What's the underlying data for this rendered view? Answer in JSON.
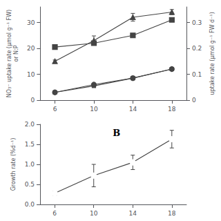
{
  "chart_data": [
    {
      "type": "line",
      "x": [
        6,
        10,
        14,
        18
      ],
      "xlim": [
        4.5,
        19.5
      ],
      "xticks": [
        6,
        10,
        14,
        18
      ],
      "ylim": [
        0,
        36
      ],
      "yticks": [
        0,
        10,
        20,
        30
      ],
      "y2lim": [
        0,
        0.36
      ],
      "y2ticks": [
        0,
        0.1,
        0.2,
        0.3
      ],
      "ylabel": "NO₃⁻ uptake rate (μmol g⁻¹ FW)\nor N:P",
      "y2label": "uptake rate (μmol g⁻¹ FW d⁻¹)",
      "grid": false,
      "series": [
        {
          "values": [
            15,
            23,
            32,
            34
          ],
          "errors": [
            0.5,
            1.8,
            1.5,
            1.0
          ],
          "marker": "triangle",
          "color": "#444444"
        },
        {
          "values": [
            20.5,
            22,
            25,
            31
          ],
          "errors": [
            0.4,
            0.8,
            0.7,
            0.5
          ],
          "marker": "square",
          "color": "#444444"
        },
        {
          "values": [
            3,
            6,
            8.5,
            12
          ],
          "errors": [
            0.3,
            0.4,
            0.5,
            0.5
          ],
          "marker": "circle",
          "color": "#444444"
        },
        {
          "values": [
            0.03,
            0.055,
            0.085,
            0.12
          ],
          "errors": [
            0.003,
            0.004,
            0.004,
            0.005
          ],
          "marker": "square",
          "color": "#444444",
          "axis": "y2"
        }
      ]
    },
    {
      "type": "line",
      "x": [
        6,
        10,
        14,
        18
      ],
      "xlim": [
        4.5,
        19.5
      ],
      "xticks": [
        6,
        10,
        14,
        18
      ],
      "ylim": [
        0.0,
        2.0
      ],
      "yticks": [
        {
          "value": 0,
          "label": "0.0"
        },
        0.5,
        {
          "value": 1,
          "label": "1.0"
        },
        1.5,
        {
          "value": 2,
          "label": "2.0"
        }
      ],
      "ylabel": "Growth rate (%d⁻¹)",
      "annotations": [
        "B"
      ],
      "grid": false,
      "series": [
        {
          "values": [
            0.28,
            0.72,
            1.05,
            1.63
          ],
          "errors": [
            0.05,
            0.28,
            0.18,
            0.22
          ],
          "marker": "open circle",
          "color": "#444444"
        }
      ]
    }
  ]
}
